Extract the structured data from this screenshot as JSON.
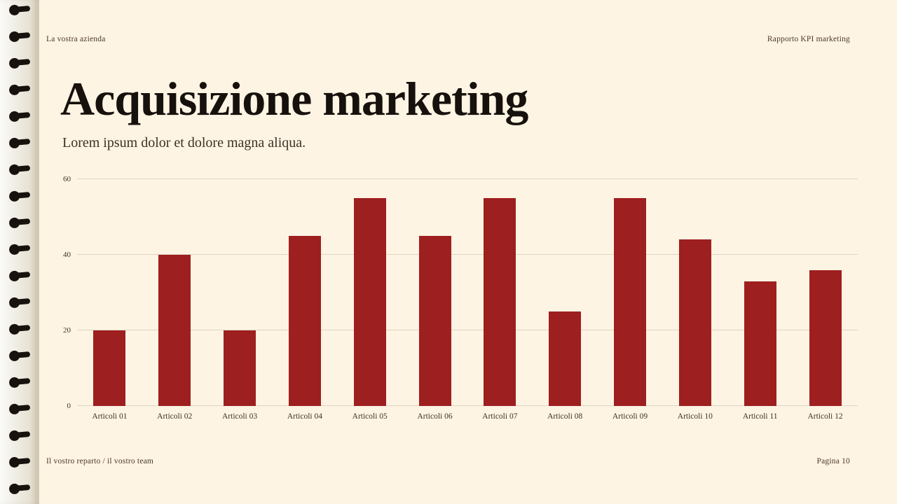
{
  "header": {
    "company": "La vostra azienda",
    "report": "Rapporto KPI marketing"
  },
  "title": "Acquisizione marketing",
  "subtitle": "Lorem ipsum dolor et dolore magna aliqua.",
  "footer": {
    "left": "Il vostro reparto / il vostro team",
    "right": "Pagina 10"
  },
  "chart_data": {
    "type": "bar",
    "categories": [
      "Articoli 01",
      "Articoli 02",
      "Articoli 03",
      "Articoli 04",
      "Articoli 05",
      "Articoli 06",
      "Articoli 07",
      "Articoli 08",
      "Articoli 09",
      "Articoli 10",
      "Articoli 11",
      "Articoli 12"
    ],
    "values": [
      20,
      40,
      20,
      45,
      55,
      45,
      55,
      25,
      55,
      44,
      33,
      36
    ],
    "title": "",
    "xlabel": "",
    "ylabel": "",
    "ylim": [
      0,
      60
    ],
    "yticks": [
      0,
      20,
      40,
      60
    ],
    "bar_color": "#9E1F1F",
    "grid": true,
    "legend": "none"
  }
}
